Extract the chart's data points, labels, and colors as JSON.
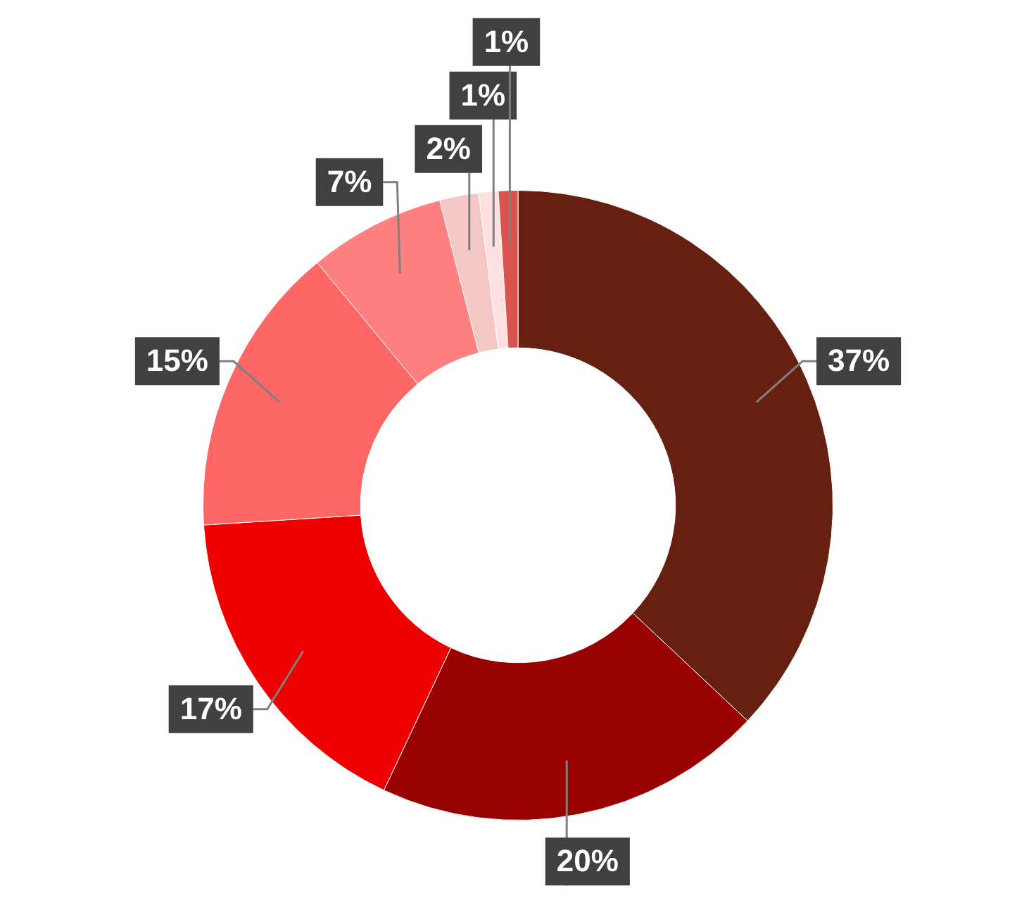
{
  "chart_data": {
    "type": "donut",
    "categories": [
      null,
      null,
      null,
      null,
      null,
      null,
      null,
      null
    ],
    "values": [
      37,
      20,
      17,
      15,
      7,
      2,
      1,
      1
    ],
    "colors": [
      "#66200f",
      "#990000",
      "#ee0000",
      "#ff6666",
      "#ff8080",
      "#f4c7c7",
      "#ffe0e0",
      "#d9534f"
    ],
    "value_labels": [
      "37%",
      "20%",
      "17%",
      "15%",
      "7%",
      "2%",
      "1%",
      "1%"
    ],
    "legend": false
  }
}
